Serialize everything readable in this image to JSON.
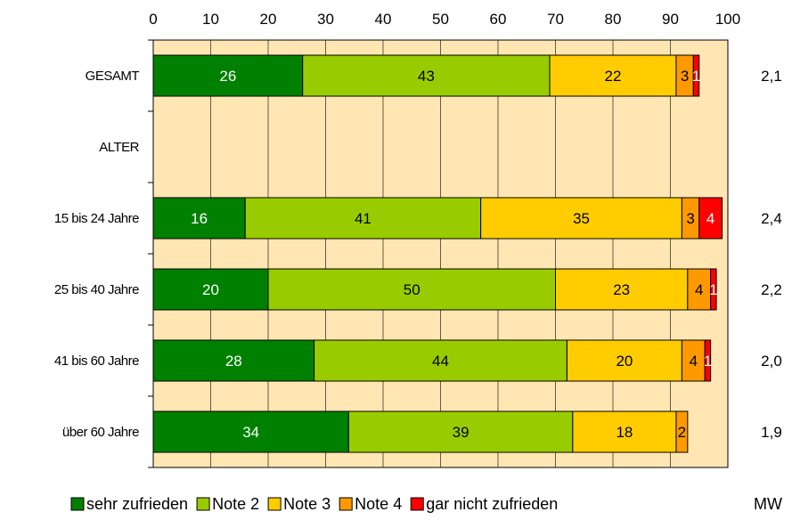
{
  "chart_data": {
    "type": "bar",
    "orientation": "horizontal",
    "stacked": true,
    "title": "",
    "xlabel": "",
    "ylabel": "",
    "xlim": [
      0,
      100
    ],
    "xticks": [
      0,
      10,
      20,
      30,
      40,
      50,
      60,
      70,
      80,
      90,
      100
    ],
    "grid": true,
    "legend_position": "bottom",
    "categories": [
      "GESAMT",
      "ALTER",
      "15 bis 24 Jahre",
      "25 bis 40 Jahre",
      "41 bis 60 Jahre",
      "über 60 Jahre"
    ],
    "series": [
      {
        "name": "sehr zufrieden",
        "color": "#008000",
        "label_color": "#ffffff",
        "values": [
          26,
          null,
          16,
          20,
          28,
          34
        ]
      },
      {
        "name": "Note 2",
        "color": "#99cc00",
        "label_color": "#000000",
        "values": [
          43,
          null,
          41,
          50,
          44,
          39
        ]
      },
      {
        "name": "Note 3",
        "color": "#ffcc00",
        "label_color": "#000000",
        "values": [
          22,
          null,
          35,
          23,
          20,
          18
        ]
      },
      {
        "name": "Note 4",
        "color": "#ff9900",
        "label_color": "#000000",
        "values": [
          3,
          null,
          3,
          4,
          4,
          2
        ]
      },
      {
        "name": "gar nicht zufrieden",
        "color": "#ff0000",
        "label_color": "#ffffff",
        "values": [
          1,
          null,
          4,
          1,
          1,
          null
        ]
      }
    ],
    "mw_header": "MW",
    "mw_values": [
      "2,1",
      "",
      "2,4",
      "2,2",
      "2,0",
      "1,9"
    ],
    "plot_background": "#ffe6b3",
    "border_color": "#000000"
  }
}
